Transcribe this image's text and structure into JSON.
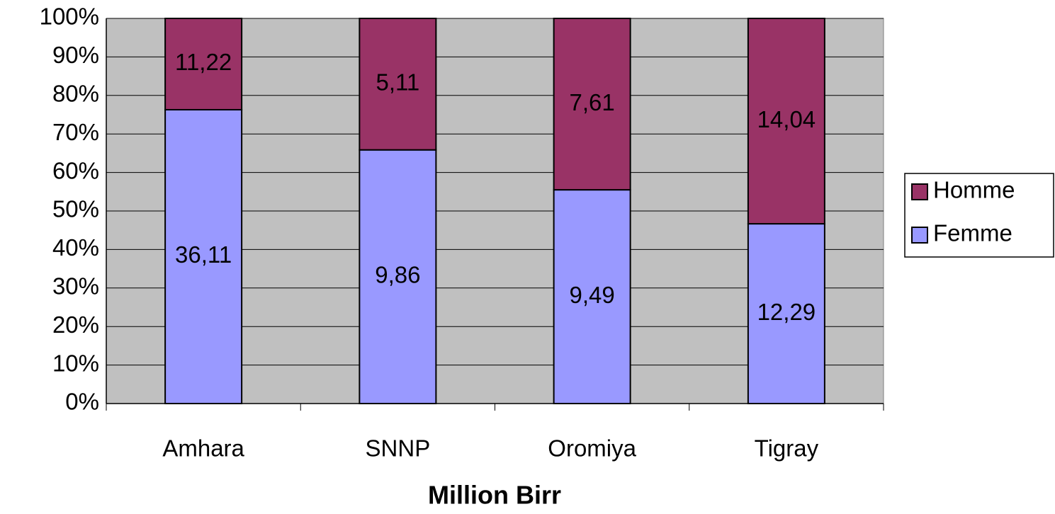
{
  "chart_data": {
    "type": "bar",
    "stacked": "percent",
    "x_label": "Million Birr",
    "categories": [
      "Amhara",
      "SNNP",
      "Oromiya",
      "Tigray"
    ],
    "series": [
      {
        "name": "Femme",
        "color": "#9999ff",
        "values": [
          36.11,
          9.86,
          9.49,
          12.29
        ],
        "value_labels": [
          "36,11",
          "9,86",
          "9,49",
          "12,29"
        ]
      },
      {
        "name": "Homme",
        "color": "#993366",
        "values": [
          11.22,
          5.11,
          7.61,
          14.04
        ],
        "value_labels": [
          "11,22",
          "5,11",
          "7,61",
          "14,04"
        ]
      }
    ],
    "ylim": [
      0,
      100
    ],
    "yticks": [
      {
        "value": 0,
        "label": "0%"
      },
      {
        "value": 10,
        "label": "10%"
      },
      {
        "value": 20,
        "label": "20%"
      },
      {
        "value": 30,
        "label": "30%"
      },
      {
        "value": 40,
        "label": "40%"
      },
      {
        "value": 50,
        "label": "50%"
      },
      {
        "value": 60,
        "label": "60%"
      },
      {
        "value": 70,
        "label": "70%"
      },
      {
        "value": 80,
        "label": "80%"
      },
      {
        "value": 90,
        "label": "90%"
      },
      {
        "value": 100,
        "label": "100%"
      }
    ],
    "grid": true,
    "legend": "right"
  }
}
